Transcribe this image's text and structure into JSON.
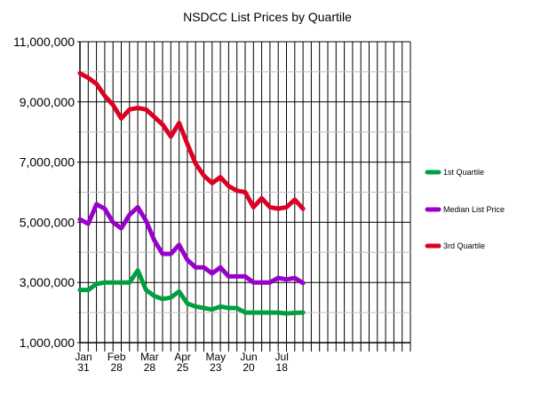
{
  "chart_data": {
    "type": "line",
    "title": "NSDCC List Prices by Quartile",
    "xlabel": "",
    "ylabel": "",
    "ylim": [
      1000000,
      11000000
    ],
    "yticks": [
      1000000,
      3000000,
      5000000,
      7000000,
      9000000,
      11000000
    ],
    "ytick_labels": [
      "1,000,000",
      "3,000,000",
      "5,000,000",
      "7,000,000",
      "9,000,000",
      "11,000,000"
    ],
    "x_tick_labels": [
      {
        "week": 0,
        "line1": "Jan",
        "line2": "31"
      },
      {
        "week": 4,
        "line1": "Feb",
        "line2": "28"
      },
      {
        "week": 8,
        "line1": "Mar",
        "line2": "28"
      },
      {
        "week": 12,
        "line1": "Apr",
        "line2": "25"
      },
      {
        "week": 16,
        "line1": "May",
        "line2": "23"
      },
      {
        "week": 20,
        "line1": "Jun",
        "line2": "20"
      },
      {
        "week": 24,
        "line1": "Jul",
        "line2": "18"
      }
    ],
    "x_weeks_total": 40,
    "grid": true,
    "legend_position": "right",
    "series": [
      {
        "name": "1st Quartile",
        "color": "#00a040",
        "values": [
          2750000,
          2750000,
          2950000,
          3000000,
          3000000,
          3000000,
          3000000,
          3400000,
          2750000,
          2550000,
          2450000,
          2500000,
          2700000,
          2300000,
          2200000,
          2150000,
          2100000,
          2200000,
          2150000,
          2150000,
          2000000,
          2000000,
          2000000,
          2000000,
          2000000,
          1970000,
          1990000,
          2000000
        ]
      },
      {
        "name": "Median List Price",
        "color": "#9900cc",
        "values": [
          5100000,
          4950000,
          5600000,
          5450000,
          5000000,
          4800000,
          5250000,
          5500000,
          5050000,
          4400000,
          3950000,
          3950000,
          4250000,
          3750000,
          3500000,
          3500000,
          3300000,
          3500000,
          3200000,
          3200000,
          3200000,
          3000000,
          3000000,
          3000000,
          3150000,
          3100000,
          3150000,
          2980000
        ]
      },
      {
        "name": "3rd Quartile",
        "color": "#dd0022",
        "values": [
          9950000,
          9800000,
          9600000,
          9200000,
          8900000,
          8450000,
          8750000,
          8800000,
          8750000,
          8500000,
          8250000,
          7850000,
          8300000,
          7600000,
          6950000,
          6550000,
          6300000,
          6500000,
          6200000,
          6050000,
          6000000,
          5500000,
          5800000,
          5500000,
          5450000,
          5500000,
          5750000,
          5450000
        ]
      }
    ]
  }
}
